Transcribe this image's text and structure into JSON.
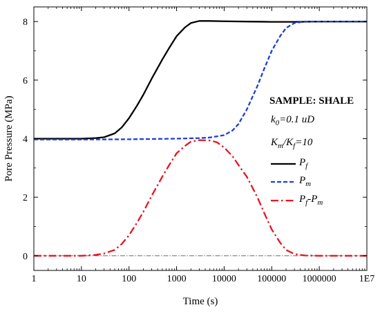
{
  "chart_data": {
    "type": "line",
    "xlabel": "Time (s)",
    "ylabel": "Pore Pressure (MPa)",
    "xscale": "log",
    "xlim": [
      1,
      10000000
    ],
    "ylim": [
      -0.5,
      8.5
    ],
    "x_ticks": [
      1,
      10,
      100,
      1000,
      10000,
      100000,
      1000000,
      10000000
    ],
    "x_tick_labels": [
      "1",
      "10",
      "100",
      "1000",
      "10000",
      "100000",
      "1000000",
      "1E7"
    ],
    "y_ticks": [
      0,
      2,
      4,
      6,
      8
    ],
    "y_tick_labels": [
      "0",
      "2",
      "4",
      "6",
      "8"
    ],
    "grid": false,
    "legend_position": "right",
    "annotations": {
      "sample": "SAMPLE: SHALE",
      "k0": "k",
      "k0_sub": "0",
      "k0_rest": "=0.1 uD",
      "km": "K",
      "km_sub": "m",
      "kf_mid": "/K",
      "kf_sub": "f",
      "kf_rest": "=10"
    },
    "reference_line": {
      "y": 0,
      "style": "dash-dot",
      "color": "#555555"
    },
    "series": [
      {
        "legend_main": "P",
        "legend_sub": "f",
        "color": "#000000",
        "dash": "solid",
        "x": [
          1,
          10,
          20,
          30,
          50,
          70,
          100,
          150,
          200,
          300,
          500,
          700,
          1000,
          1500,
          2000,
          3000,
          5000,
          10000,
          30000,
          100000,
          300000,
          1000000,
          10000000
        ],
        "y": [
          4.0,
          4.0,
          4.02,
          4.05,
          4.18,
          4.38,
          4.7,
          5.15,
          5.5,
          6.05,
          6.7,
          7.1,
          7.5,
          7.8,
          7.95,
          8.02,
          8.02,
          8.01,
          8.0,
          7.99,
          7.99,
          8.0,
          8.0
        ]
      },
      {
        "legend_main": "P",
        "legend_sub": "m",
        "color": "#1f3fd6",
        "dash": "dashed",
        "x": [
          1,
          10,
          100,
          1000,
          3000,
          5000,
          10000,
          15000,
          20000,
          30000,
          50000,
          70000,
          100000,
          150000,
          200000,
          300000,
          500000,
          1000000,
          10000000
        ],
        "y": [
          3.97,
          3.97,
          3.98,
          4.0,
          4.02,
          4.04,
          4.12,
          4.28,
          4.5,
          5.0,
          5.8,
          6.4,
          7.0,
          7.5,
          7.78,
          7.95,
          8.0,
          8.0,
          8.0
        ]
      },
      {
        "legend_main": "P",
        "legend_sub": "f",
        "legend_mid": "-P",
        "legend_sub2": "m",
        "color": "#e8141e",
        "dash": "dashdot",
        "x": [
          1,
          10,
          20,
          30,
          50,
          70,
          100,
          150,
          200,
          300,
          500,
          700,
          1000,
          1500,
          2000,
          3000,
          5000,
          7000,
          10000,
          15000,
          20000,
          30000,
          50000,
          70000,
          100000,
          150000,
          200000,
          300000,
          500000,
          1000000,
          10000000
        ],
        "y": [
          0.0,
          0.0,
          0.03,
          0.08,
          0.2,
          0.4,
          0.7,
          1.15,
          1.5,
          2.05,
          2.7,
          3.1,
          3.5,
          3.75,
          3.9,
          3.95,
          3.94,
          3.88,
          3.7,
          3.4,
          3.1,
          2.7,
          2.0,
          1.45,
          0.9,
          0.45,
          0.2,
          0.06,
          0.01,
          0.0,
          0.0
        ]
      }
    ]
  }
}
